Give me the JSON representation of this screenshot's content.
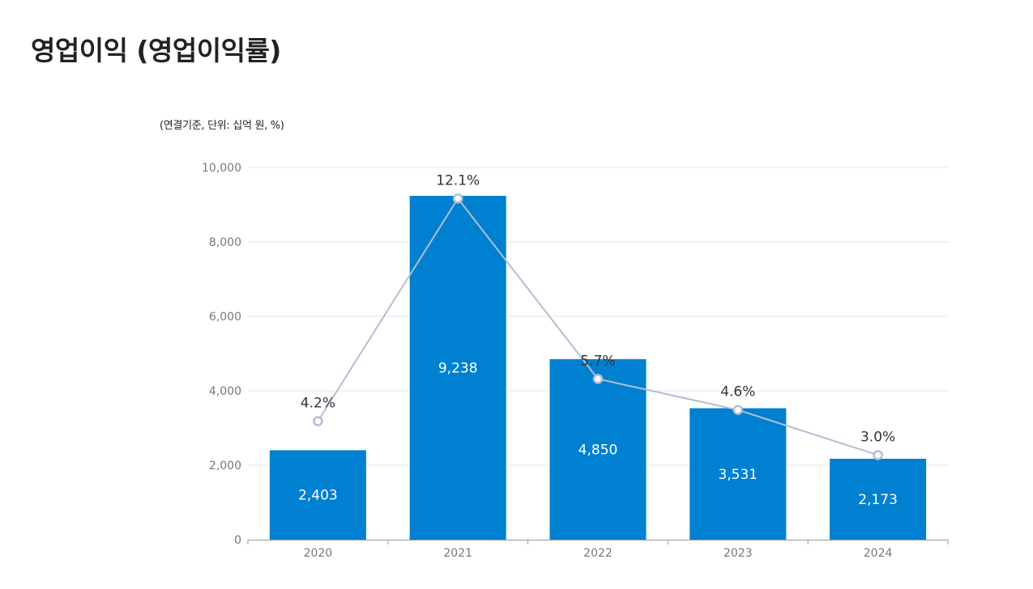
{
  "title": "영업이익 (영업이익률)",
  "unit_note": "(연결기준, 단위: 십억 원, %)",
  "colors": {
    "bar": "#0080D1",
    "line": "#B3BDD4",
    "grid": "#E6E6E6",
    "axis": "#999999"
  },
  "chart_data": {
    "type": "bar",
    "title": "영업이익 (영업이익률)",
    "categories": [
      "2020",
      "2021",
      "2022",
      "2023",
      "2024"
    ],
    "series": [
      {
        "name": "영업이익",
        "type": "bar",
        "values": [
          2403,
          9238,
          4850,
          3531,
          2173
        ],
        "labels": [
          "2,403",
          "9,238",
          "4,850",
          "3,531",
          "2,173"
        ]
      },
      {
        "name": "영업이익률",
        "type": "line",
        "values": [
          4.2,
          12.1,
          5.7,
          4.6,
          3.0
        ],
        "labels": [
          "4.2%",
          "12.1%",
          "5.7%",
          "4.6%",
          "3.0%"
        ],
        "ylim": [
          0,
          13.2
        ]
      }
    ],
    "ylim": [
      0,
      10000
    ],
    "yticks": [
      0,
      2000,
      4000,
      6000,
      8000,
      10000
    ],
    "ytick_labels": [
      "0",
      "2,000",
      "4,000",
      "6,000",
      "8,000",
      "10,000"
    ],
    "xlabel": "",
    "ylabel": "",
    "grid": true
  }
}
